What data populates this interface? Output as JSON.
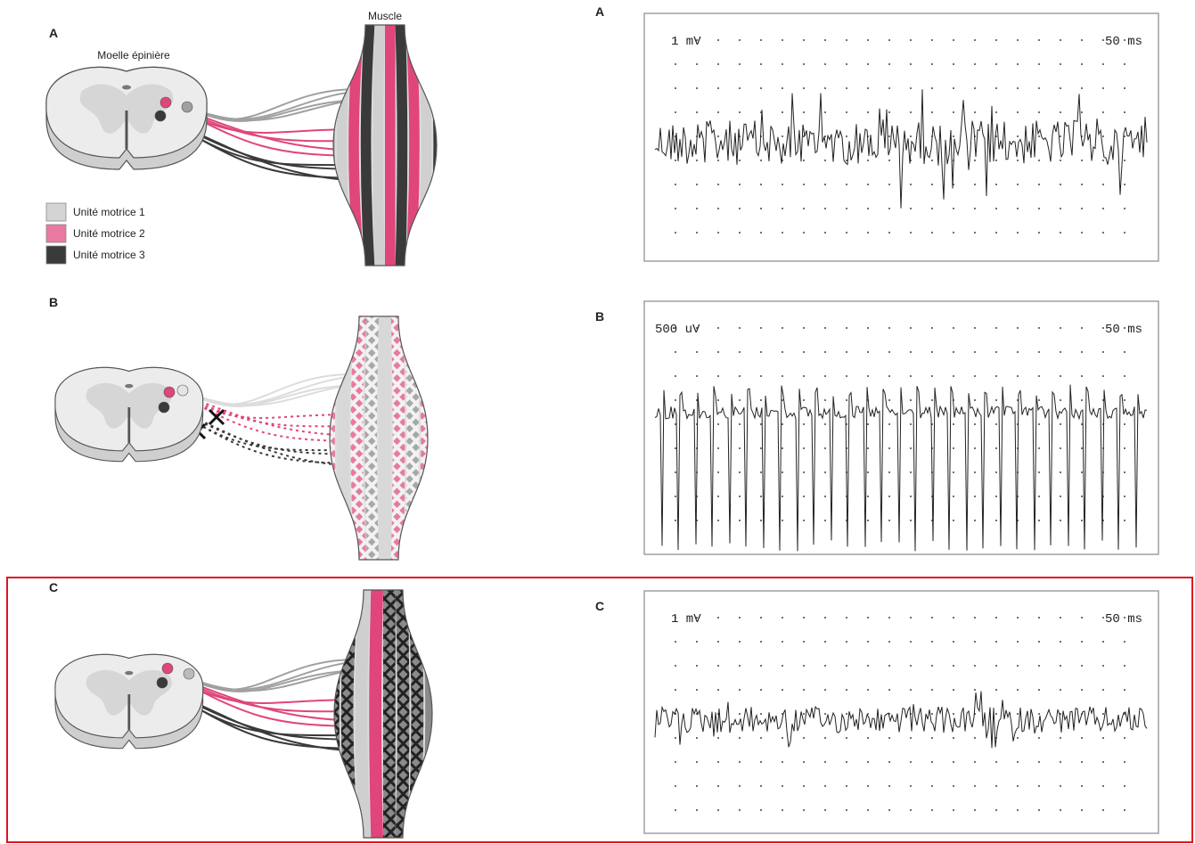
{
  "legend": [
    "Unité motrice 1",
    "Unité motrice 2",
    "Unité motrice 3"
  ],
  "spinal_cord_label": "Moelle épinière",
  "muscle_label": "Muscle",
  "panels": [
    {
      "left_label": "A",
      "right_label": "A",
      "amplitude": "1 mV",
      "time": "50 ms"
    },
    {
      "left_label": "B",
      "right_label": "B",
      "amplitude": "500 uV",
      "time": "50 ms"
    },
    {
      "left_label": "C",
      "right_label": "C",
      "amplitude": "1 mV",
      "time": "50 ms"
    }
  ]
}
